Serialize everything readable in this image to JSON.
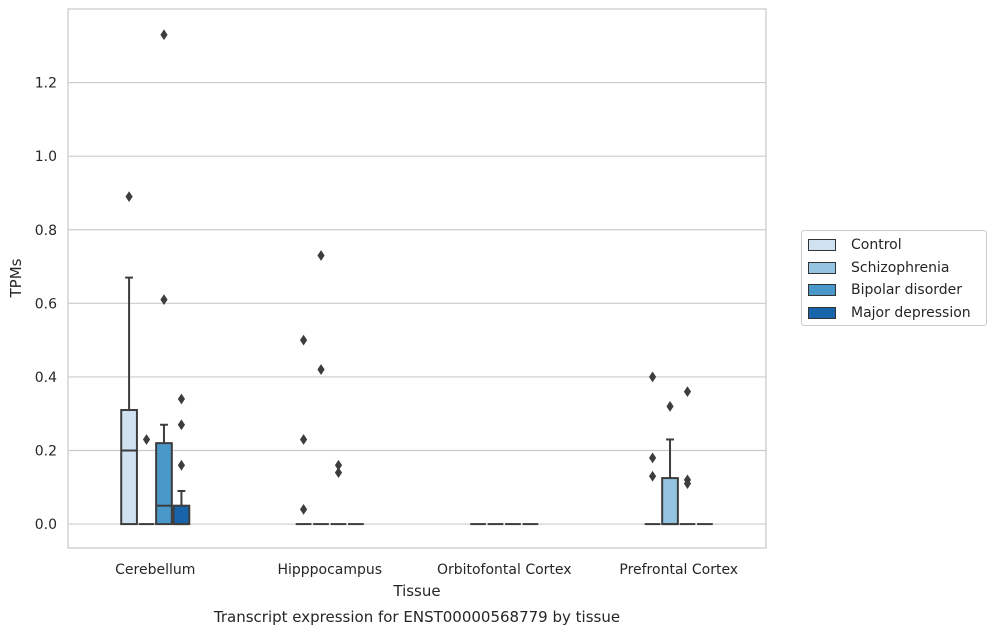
{
  "chart_data": {
    "type": "box",
    "title": "Transcript expression for ENST00000568779 by tissue",
    "xlabel": "Tissue",
    "ylabel": "TPMs",
    "ylim": [
      -0.065,
      1.4
    ],
    "yticks": [
      "0.0",
      "0.2",
      "0.4",
      "0.6",
      "0.8",
      "1.0",
      "1.2"
    ],
    "ytick_values": [
      0.0,
      0.2,
      0.4,
      0.6,
      0.8,
      1.0,
      1.2
    ],
    "grid": "horizontal",
    "legend_placement": "outside-right",
    "categories": [
      "Cerebellum",
      "Hipppocampus",
      "Orbitofontal Cortex",
      "Prefrontal Cortex"
    ],
    "series": [
      {
        "name": "Control",
        "color": "#d0e1f2",
        "boxes": [
          {
            "q1": 0.0,
            "median": 0.2,
            "q3": 0.31,
            "whisker_low": 0.0,
            "whisker_high": 0.67,
            "outliers": [
              0.89
            ]
          },
          {
            "q1": 0.0,
            "median": 0.0,
            "q3": 0.0,
            "whisker_low": 0.0,
            "whisker_high": 0.0,
            "outliers": [
              0.5,
              0.23,
              0.04
            ]
          },
          {
            "q1": 0.0,
            "median": 0.0,
            "q3": 0.0,
            "whisker_low": 0.0,
            "whisker_high": 0.0,
            "outliers": []
          },
          {
            "q1": 0.0,
            "median": 0.0,
            "q3": 0.0,
            "whisker_low": 0.0,
            "whisker_high": 0.0,
            "outliers": [
              0.4,
              0.18,
              0.13
            ]
          }
        ]
      },
      {
        "name": "Schizophrenia",
        "color": "#94c4df",
        "boxes": [
          {
            "q1": 0.0,
            "median": 0.0,
            "q3": 0.0,
            "whisker_low": 0.0,
            "whisker_high": 0.0,
            "outliers": [
              0.23
            ]
          },
          {
            "q1": 0.0,
            "median": 0.0,
            "q3": 0.0,
            "whisker_low": 0.0,
            "whisker_high": 0.0,
            "outliers": [
              0.73,
              0.42
            ]
          },
          {
            "q1": 0.0,
            "median": 0.0,
            "q3": 0.0,
            "whisker_low": 0.0,
            "whisker_high": 0.0,
            "outliers": []
          },
          {
            "q1": 0.0,
            "median": 0.0,
            "q3": 0.125,
            "whisker_low": 0.0,
            "whisker_high": 0.23,
            "outliers": [
              0.32
            ]
          }
        ]
      },
      {
        "name": "Bipolar disorder",
        "color": "#4a98c9",
        "boxes": [
          {
            "q1": 0.0,
            "median": 0.05,
            "q3": 0.22,
            "whisker_low": 0.0,
            "whisker_high": 0.27,
            "outliers": [
              1.33,
              0.61
            ]
          },
          {
            "q1": 0.0,
            "median": 0.0,
            "q3": 0.0,
            "whisker_low": 0.0,
            "whisker_high": 0.0,
            "outliers": [
              0.16,
              0.14
            ]
          },
          {
            "q1": 0.0,
            "median": 0.0,
            "q3": 0.0,
            "whisker_low": 0.0,
            "whisker_high": 0.0,
            "outliers": []
          },
          {
            "q1": 0.0,
            "median": 0.0,
            "q3": 0.0,
            "whisker_low": 0.0,
            "whisker_high": 0.0,
            "outliers": [
              0.36,
              0.12,
              0.11
            ]
          }
        ]
      },
      {
        "name": "Major depression",
        "color": "#1764ab",
        "boxes": [
          {
            "q1": 0.0,
            "median": 0.0,
            "q3": 0.05,
            "whisker_low": 0.0,
            "whisker_high": 0.09,
            "outliers": [
              0.34,
              0.27,
              0.16
            ]
          },
          {
            "q1": 0.0,
            "median": 0.0,
            "q3": 0.0,
            "whisker_low": 0.0,
            "whisker_high": 0.0,
            "outliers": []
          },
          {
            "q1": 0.0,
            "median": 0.0,
            "q3": 0.0,
            "whisker_low": 0.0,
            "whisker_high": 0.0,
            "outliers": []
          },
          {
            "q1": 0.0,
            "median": 0.0,
            "q3": 0.0,
            "whisker_low": 0.0,
            "whisker_high": 0.0,
            "outliers": []
          }
        ]
      }
    ]
  }
}
